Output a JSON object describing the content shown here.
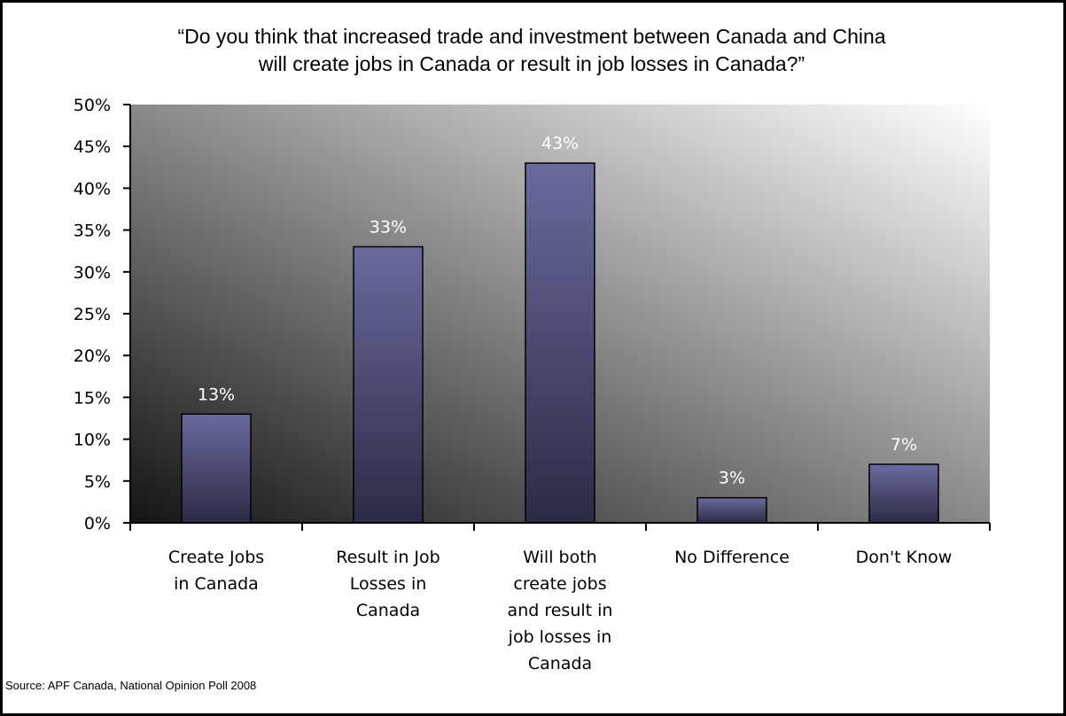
{
  "chart_data": {
    "type": "bar",
    "title_lines": [
      "“Do you think that increased trade and investment between Canada and China",
      "will create jobs in Canada or result in job losses in Canada?”"
    ],
    "categories": [
      [
        "Create Jobs",
        "in Canada"
      ],
      [
        "Result in Job",
        "Losses in",
        "Canada"
      ],
      [
        "Will both",
        "create jobs",
        "and result in",
        "job losses in",
        "Canada"
      ],
      [
        "No Difference"
      ],
      [
        "Don't Know"
      ]
    ],
    "values": [
      13,
      33,
      43,
      3,
      7
    ],
    "value_labels": [
      "13%",
      "33%",
      "43%",
      "3%",
      "7%"
    ],
    "ylim": [
      0,
      50
    ],
    "yticks": [
      0,
      5,
      10,
      15,
      20,
      25,
      30,
      35,
      40,
      45,
      50
    ],
    "ytick_labels": [
      "0%",
      "5%",
      "10%",
      "15%",
      "20%",
      "25%",
      "30%",
      "35%",
      "40%",
      "45%",
      "50%"
    ],
    "grid": false,
    "legend": "none",
    "colors": {
      "bar_top": "#6a6a9e",
      "bar_bottom": "#2b2b45",
      "plot_light": "#ffffff",
      "plot_dark": "#141414"
    }
  },
  "source": "Source: APF Canada, National Opinion Poll 2008"
}
